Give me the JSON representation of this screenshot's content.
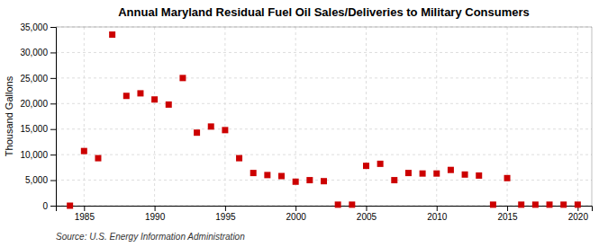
{
  "chart_data": {
    "type": "scatter",
    "title": "Annual Maryland Residual Fuel Oil Sales/Deliveries to Military Consumers",
    "ylabel": "Thousand Gallons",
    "annotations": [
      "Source: U.S. Energy Information Administration"
    ],
    "color": "#cc0000",
    "marker": "square",
    "grid": true,
    "xlim": [
      1983,
      2021
    ],
    "ylim": [
      0,
      35000
    ],
    "xticks": [
      1985,
      1990,
      1995,
      2000,
      2005,
      2010,
      2015,
      2020
    ],
    "yticks": [
      0,
      {
        "value": 5000,
        "label": "5,000"
      },
      {
        "value": 10000,
        "label": "10,000"
      },
      {
        "value": 15000,
        "label": "15,000"
      },
      {
        "value": 20000,
        "label": "20,000"
      },
      {
        "value": 25000,
        "label": "25,000"
      },
      {
        "value": 30000,
        "label": "30,000"
      },
      {
        "value": 35000,
        "label": "35,000"
      }
    ],
    "x": [
      1984,
      1985,
      1986,
      1987,
      1988,
      1989,
      1990,
      1991,
      1992,
      1993,
      1994,
      1995,
      1996,
      1997,
      1998,
      1999,
      2000,
      2001,
      2002,
      2003,
      2004,
      2005,
      2006,
      2007,
      2008,
      2009,
      2010,
      2011,
      2012,
      2013,
      2014,
      2015,
      2016,
      2017,
      2018,
      2019,
      2020
    ],
    "values": [
      0,
      10700,
      9300,
      33500,
      21500,
      22000,
      20800,
      19800,
      25000,
      14300,
      15500,
      14800,
      9300,
      6400,
      6000,
      5800,
      4700,
      5000,
      4800,
      200,
      200,
      7800,
      8200,
      5000,
      6400,
      6300,
      6300,
      7000,
      6100,
      5900,
      200,
      5400,
      200,
      200,
      200,
      200,
      200
    ]
  }
}
